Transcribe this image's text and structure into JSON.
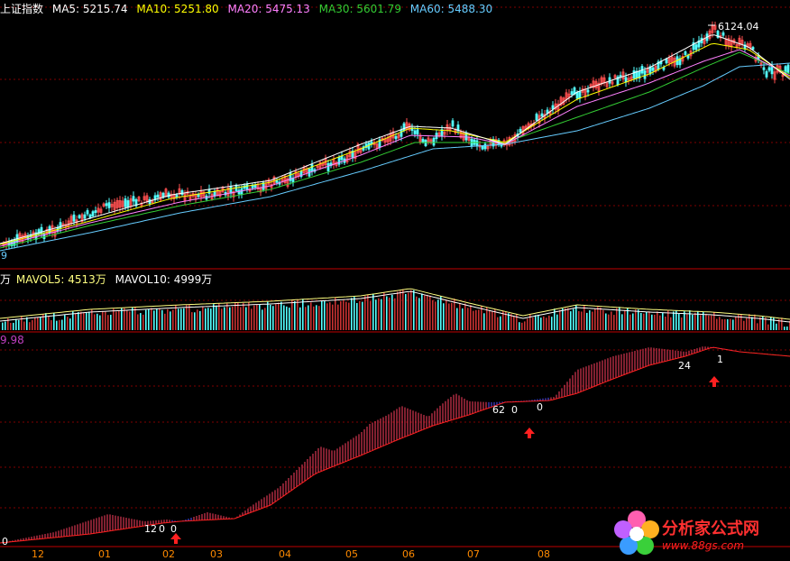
{
  "main": {
    "title": "上证指数",
    "ma": [
      {
        "label": "MA5: 5215.74",
        "color": "#ffffff"
      },
      {
        "label": "MA10: 5251.80",
        "color": "#ffff00"
      },
      {
        "label": "MA20: 5475.13",
        "color": "#ff80ff"
      },
      {
        "label": "MA30: 5601.79",
        "color": "#33cc33"
      },
      {
        "label": "MA60: 5488.30",
        "color": "#66ccff"
      }
    ],
    "high_label": "6124.04",
    "left_edge_label": "9"
  },
  "volume": {
    "unit_label": "万",
    "ma": [
      {
        "label": "MAVOL5: 4513万",
        "color": "#ffff80"
      },
      {
        "label": "MAVOL10: 4999万",
        "color": "#ffffff"
      }
    ]
  },
  "indicator": {
    "value_label": "9.98",
    "annotations": [
      "0",
      "12",
      "0",
      "0",
      "62",
      "0",
      "0",
      "24",
      "1"
    ]
  },
  "x_axis": {
    "labels": [
      "12",
      "01",
      "02",
      "03",
      "04",
      "05",
      "06",
      "07",
      "08"
    ]
  },
  "logo": {
    "name": "分析家公式网",
    "url": "www.88gs.com"
  },
  "colors": {
    "up": "#ff3232",
    "down": "#54ffff",
    "indicator_line": "#ff2020",
    "indicator_flat": "#4040ff",
    "grid": "#800000",
    "arrow": "#ff2020"
  },
  "chart_data": {
    "type": "line",
    "series": [
      {
        "name": "MA5",
        "last": 5215.74
      },
      {
        "name": "MA10",
        "last": 5251.8
      },
      {
        "name": "MA20",
        "last": 5475.13
      },
      {
        "name": "MA30",
        "last": 5601.79
      },
      {
        "name": "MA60",
        "last": 5488.3
      }
    ],
    "high": 6124.04,
    "volume_ma": [
      {
        "name": "MAVOL5",
        "last": 4513
      },
      {
        "name": "MAVOL10",
        "last": 4999
      }
    ],
    "months": [
      "12",
      "01",
      "02",
      "03",
      "04",
      "05",
      "06",
      "07",
      "08"
    ]
  }
}
